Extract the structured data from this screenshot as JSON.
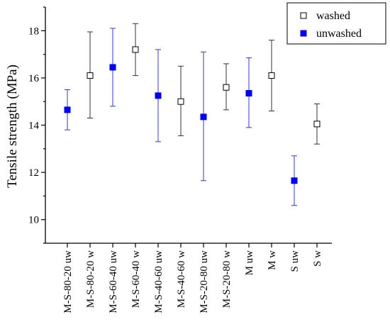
{
  "chart_data": {
    "type": "scatter",
    "ylabel": "Tensile strength (MPa)",
    "xlabel": "",
    "ylim": [
      9,
      19
    ],
    "yticks": [
      10,
      12,
      14,
      16,
      18
    ],
    "grid": false,
    "legend_position": "top-right",
    "categories": [
      "M-S-80-20 uw",
      "M-S-80-20 w",
      "M-S-60-40 uw",
      "M-S-60-40 w",
      "M-S-40-60 uw",
      "M-S-40-60 w",
      "M-S-20-80 uw",
      "M-S-20-80 w",
      "M uw",
      "M w",
      "S uw",
      "S w"
    ],
    "series": [
      {
        "name": "washed",
        "marker": "open-square",
        "color": "#000000",
        "error_color": "#333333",
        "points": [
          {
            "category": "M-S-80-20 w",
            "value": 16.1,
            "error_low": 14.3,
            "error_high": 17.95
          },
          {
            "category": "M-S-60-40 w",
            "value": 17.2,
            "error_low": 16.1,
            "error_high": 18.3
          },
          {
            "category": "M-S-40-60 w",
            "value": 15.0,
            "error_low": 13.55,
            "error_high": 16.5
          },
          {
            "category": "M-S-20-80 w",
            "value": 15.6,
            "error_low": 14.65,
            "error_high": 16.6
          },
          {
            "category": "M w",
            "value": 16.1,
            "error_low": 14.6,
            "error_high": 17.6
          },
          {
            "category": "S w",
            "value": 14.05,
            "error_low": 13.2,
            "error_high": 14.9
          }
        ]
      },
      {
        "name": "unwashed",
        "marker": "filled-square",
        "color": "#0000ff",
        "error_color": "#3333ff",
        "points": [
          {
            "category": "M-S-80-20 uw",
            "value": 14.65,
            "error_low": 13.8,
            "error_high": 15.5
          },
          {
            "category": "M-S-60-40 uw",
            "value": 16.45,
            "error_low": 14.8,
            "error_high": 18.1
          },
          {
            "category": "M-S-40-60 uw",
            "value": 15.25,
            "error_low": 13.3,
            "error_high": 17.2
          },
          {
            "category": "M-S-20-80 uw",
            "value": 14.35,
            "error_low": 11.65,
            "error_high": 17.1
          },
          {
            "category": "M uw",
            "value": 15.35,
            "error_low": 13.9,
            "error_high": 16.85
          },
          {
            "category": "S uw",
            "value": 11.65,
            "error_low": 10.6,
            "error_high": 12.7
          }
        ]
      }
    ]
  }
}
